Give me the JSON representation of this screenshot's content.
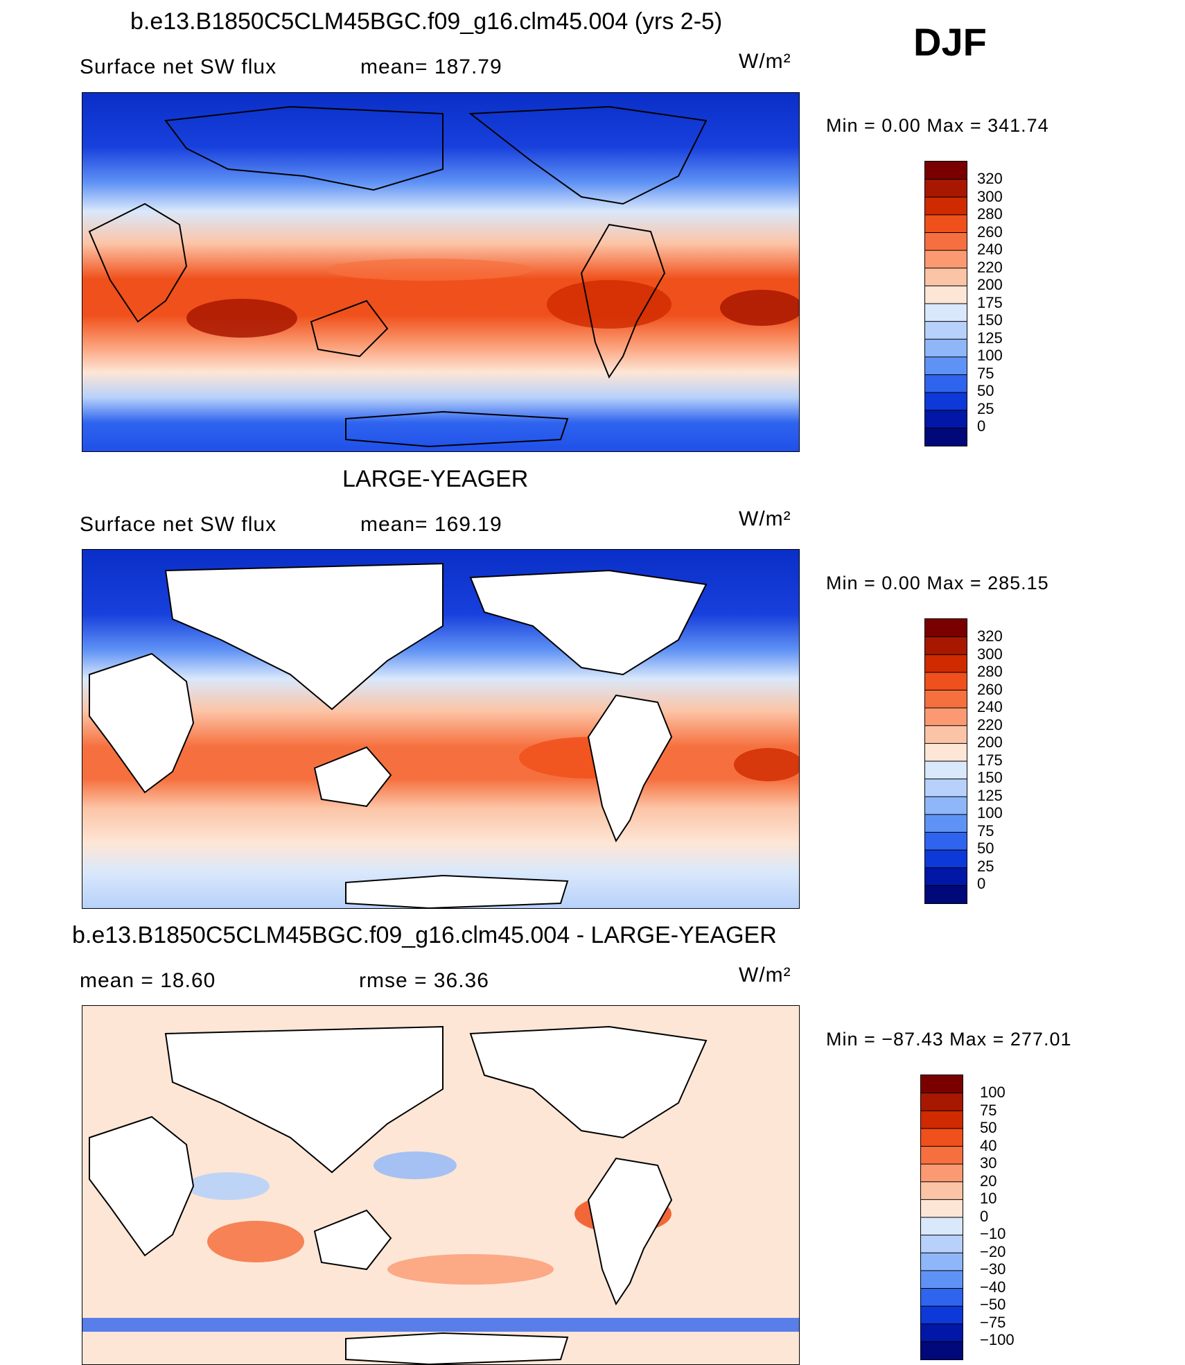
{
  "season": "DJF",
  "panels": [
    {
      "title": "b.e13.B1850C5CLM45BGC.f09_g16.clm45.004 (yrs 2-5)",
      "left_label": "Surface net SW flux",
      "mid_label": "mean= 187.79",
      "units": "W/m²",
      "minmax": "Min =    0.00  Max  =  341.74",
      "levels": [
        "320",
        "300",
        "280",
        "260",
        "240",
        "220",
        "200",
        "175",
        "150",
        "125",
        "100",
        "75",
        "50",
        "25",
        "0"
      ]
    },
    {
      "title": "LARGE-YEAGER",
      "left_label": "Surface net SW flux",
      "mid_label": "mean= 169.19",
      "units": "W/m²",
      "minmax": "Min =    0.00  Max  =  285.15",
      "levels": [
        "320",
        "300",
        "280",
        "260",
        "240",
        "220",
        "200",
        "175",
        "150",
        "125",
        "100",
        "75",
        "50",
        "25",
        "0"
      ]
    },
    {
      "title": "b.e13.B1850C5CLM45BGC.f09_g16.clm45.004 - LARGE-YEAGER",
      "left_label": "mean =   18.60",
      "mid_label": "rmse =   36.36",
      "units": "W/m²",
      "minmax": "Min = −87.43  Max  =  277.01",
      "levels": [
        "100",
        "75",
        "50",
        "40",
        "30",
        "20",
        "10",
        "0",
        "−10",
        "−20",
        "−30",
        "−40",
        "−50",
        "−75",
        "−100"
      ]
    }
  ],
  "colorbar_colors": [
    "#7a0000",
    "#a81800",
    "#cf2a00",
    "#f0501b",
    "#f6703f",
    "#fb9a72",
    "#fcc4a6",
    "#fde6d6",
    "#d9e8fb",
    "#b7d1fa",
    "#8fb6f9",
    "#5f92f5",
    "#2f64ef",
    "#0c39d8",
    "#0017a8",
    "#00087a"
  ],
  "maps": {
    "top": {
      "base": "#2c5bea",
      "pole_north": "#0a2fc8",
      "pole_south": "#2050e8"
    },
    "mid": {
      "base": "#2450e6",
      "land": "#ffffff"
    },
    "bot": {
      "base": "#fde6d6",
      "land": "#ffffff"
    }
  }
}
